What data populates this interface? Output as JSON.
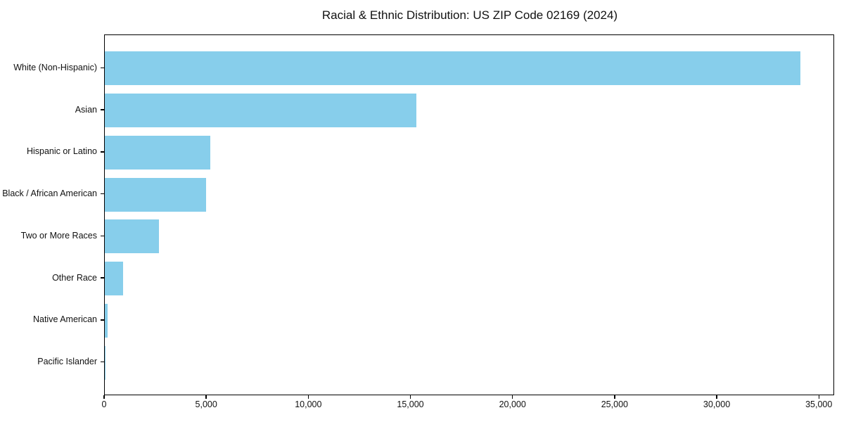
{
  "figure": {
    "title": "Racial & Ethnic Distribution: US ZIP Code 02169 (2024)",
    "background_color": "#ffffff",
    "text_color": "#111111"
  },
  "chart_data": {
    "type": "bar",
    "orientation": "horizontal",
    "title": "Racial & Ethnic Distribution: US ZIP Code 02169 (2024)",
    "xlabel": "",
    "ylabel": "",
    "categories": [
      "White (Non-Hispanic)",
      "Asian",
      "Hispanic or Latino",
      "Black / African American",
      "Two or More Races",
      "Other Race",
      "Native American",
      "Pacific Islander"
    ],
    "values": [
      34050,
      15250,
      5150,
      4950,
      2650,
      880,
      150,
      20
    ],
    "xlim": [
      0,
      35750
    ],
    "xticks": [
      0,
      5000,
      10000,
      15000,
      20000,
      25000,
      30000,
      35000
    ],
    "xtick_labels": [
      "0",
      "5,000",
      "10,000",
      "15,000",
      "20,000",
      "25,000",
      "30,000",
      "35,000"
    ],
    "bar_color": "#87ceeb",
    "grid": false,
    "legend": null
  }
}
